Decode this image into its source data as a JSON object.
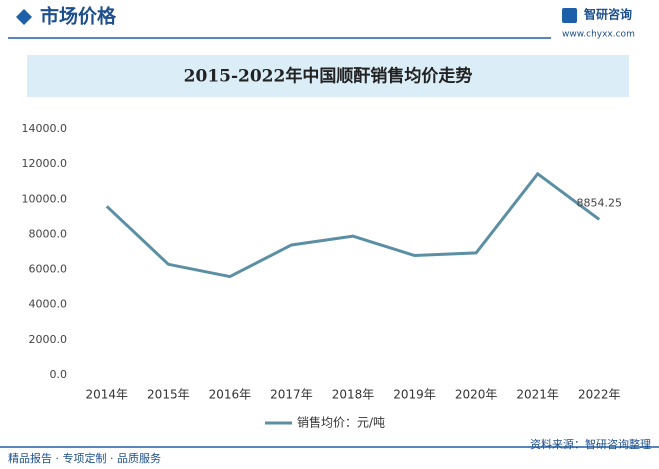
{
  "header": {
    "title": "市场价格",
    "brand": "智研咨询",
    "url": "www.chyxx.com"
  },
  "chart_data": {
    "type": "line",
    "title": "2015-2022年中国顺酐销售均价走势",
    "categories": [
      "2014年",
      "2015年",
      "2016年",
      "2017年",
      "2018年",
      "2019年",
      "2020年",
      "2021年",
      "2022年"
    ],
    "series": [
      {
        "name": "销售均价：元/吨",
        "color": "#5b8fa3",
        "values": [
          9600,
          6300,
          5600,
          7400,
          7900,
          6800,
          6950,
          11450,
          8854.25
        ],
        "value_labels": [
          null,
          null,
          null,
          null,
          null,
          null,
          null,
          null,
          "8854.25"
        ]
      }
    ],
    "ylim": [
      0,
      14000
    ],
    "yticks": [
      {
        "value": 0,
        "label": "0.0"
      },
      {
        "value": 2000,
        "label": "2000.0"
      },
      {
        "value": 4000,
        "label": "4000.0"
      },
      {
        "value": 6000,
        "label": "6000.0"
      },
      {
        "value": 8000,
        "label": "8000.0"
      },
      {
        "value": 10000,
        "label": "10000.0"
      },
      {
        "value": 12000,
        "label": "12000.0"
      },
      {
        "value": 14000,
        "label": "14000.0"
      }
    ],
    "grid": false
  },
  "footer": {
    "left": "精品报告 · 专项定制 · 品质服务",
    "right": "资料来源：智研咨询整理"
  }
}
